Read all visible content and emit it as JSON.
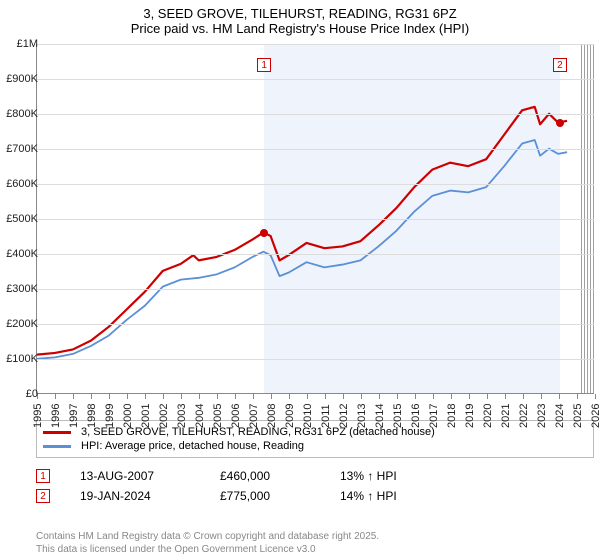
{
  "title": {
    "line1": "3, SEED GROVE, TILEHURST, READING, RG31 6PZ",
    "line2": "Price paid vs. HM Land Registry's House Price Index (HPI)"
  },
  "chart": {
    "type": "line",
    "xlim": [
      1995,
      2026
    ],
    "ylim": [
      0,
      1000000
    ],
    "ytick_step": 100000,
    "yticks": [
      "£0",
      "£100K",
      "£200K",
      "£300K",
      "£400K",
      "£500K",
      "£600K",
      "£700K",
      "£800K",
      "£900K",
      "£1M"
    ],
    "xticks": [
      1995,
      1996,
      1997,
      1998,
      1999,
      2000,
      2001,
      2002,
      2003,
      2004,
      2005,
      2006,
      2007,
      2008,
      2009,
      2010,
      2011,
      2012,
      2013,
      2014,
      2015,
      2016,
      2017,
      2018,
      2019,
      2020,
      2021,
      2022,
      2023,
      2024,
      2025,
      2026
    ],
    "shaded_from": 2007.62,
    "shaded_to": 2024.05,
    "hatch_from": 2025.2,
    "background_color": "#ffffff",
    "shaded_color": "#eef3fc",
    "grid_color": "#dcdcdc",
    "axis_color": "#888888",
    "label_fontsize": 11,
    "title_fontsize": 13,
    "series": [
      {
        "name": "property",
        "label": "3, SEED GROVE, TILEHURST, READING, RG31 6PZ (detached house)",
        "color": "#cc0000",
        "line_width": 2.2,
        "data": [
          [
            1995,
            110000
          ],
          [
            1996,
            115000
          ],
          [
            1997,
            125000
          ],
          [
            1998,
            150000
          ],
          [
            1999,
            190000
          ],
          [
            2000,
            240000
          ],
          [
            2001,
            290000
          ],
          [
            2002,
            350000
          ],
          [
            2003,
            370000
          ],
          [
            2003.7,
            395000
          ],
          [
            2004,
            380000
          ],
          [
            2005,
            390000
          ],
          [
            2006,
            410000
          ],
          [
            2007,
            440000
          ],
          [
            2007.6,
            460000
          ],
          [
            2008,
            450000
          ],
          [
            2008.5,
            380000
          ],
          [
            2009,
            395000
          ],
          [
            2010,
            430000
          ],
          [
            2011,
            415000
          ],
          [
            2012,
            420000
          ],
          [
            2013,
            435000
          ],
          [
            2014,
            480000
          ],
          [
            2015,
            530000
          ],
          [
            2016,
            590000
          ],
          [
            2017,
            640000
          ],
          [
            2018,
            660000
          ],
          [
            2019,
            650000
          ],
          [
            2020,
            670000
          ],
          [
            2021,
            740000
          ],
          [
            2022,
            810000
          ],
          [
            2022.7,
            820000
          ],
          [
            2023,
            770000
          ],
          [
            2023.5,
            800000
          ],
          [
            2024,
            775000
          ],
          [
            2024.5,
            780000
          ]
        ]
      },
      {
        "name": "hpi",
        "label": "HPI: Average price, detached house, Reading",
        "color": "#5b8fd6",
        "line_width": 1.8,
        "data": [
          [
            1995,
            98000
          ],
          [
            1996,
            102000
          ],
          [
            1997,
            112000
          ],
          [
            1998,
            135000
          ],
          [
            1999,
            165000
          ],
          [
            2000,
            210000
          ],
          [
            2001,
            250000
          ],
          [
            2002,
            305000
          ],
          [
            2003,
            325000
          ],
          [
            2004,
            330000
          ],
          [
            2005,
            340000
          ],
          [
            2006,
            360000
          ],
          [
            2007,
            390000
          ],
          [
            2007.6,
            405000
          ],
          [
            2008,
            395000
          ],
          [
            2008.5,
            335000
          ],
          [
            2009,
            345000
          ],
          [
            2010,
            375000
          ],
          [
            2011,
            360000
          ],
          [
            2012,
            368000
          ],
          [
            2013,
            380000
          ],
          [
            2014,
            420000
          ],
          [
            2015,
            465000
          ],
          [
            2016,
            520000
          ],
          [
            2017,
            565000
          ],
          [
            2018,
            580000
          ],
          [
            2019,
            575000
          ],
          [
            2020,
            590000
          ],
          [
            2021,
            650000
          ],
          [
            2022,
            715000
          ],
          [
            2022.7,
            725000
          ],
          [
            2023,
            680000
          ],
          [
            2023.5,
            700000
          ],
          [
            2024,
            685000
          ],
          [
            2024.5,
            690000
          ]
        ]
      }
    ],
    "markers": [
      {
        "num": "1",
        "x": 2007.62,
        "y": 460000,
        "box_y": 940000
      },
      {
        "num": "2",
        "x": 2024.05,
        "y": 775000,
        "box_y": 940000
      }
    ]
  },
  "legend": {
    "series": [
      {
        "color": "#cc0000",
        "label": "3, SEED GROVE, TILEHURST, READING, RG31 6PZ (detached house)"
      },
      {
        "color": "#5b8fd6",
        "label": "HPI: Average price, detached house, Reading"
      }
    ]
  },
  "sales": [
    {
      "num": "1",
      "date": "13-AUG-2007",
      "price": "£460,000",
      "pct": "13% ↑ HPI"
    },
    {
      "num": "2",
      "date": "19-JAN-2024",
      "price": "£775,000",
      "pct": "14% ↑ HPI"
    }
  ],
  "footer": {
    "line1": "Contains HM Land Registry data © Crown copyright and database right 2025.",
    "line2": "This data is licensed under the Open Government Licence v3.0"
  }
}
